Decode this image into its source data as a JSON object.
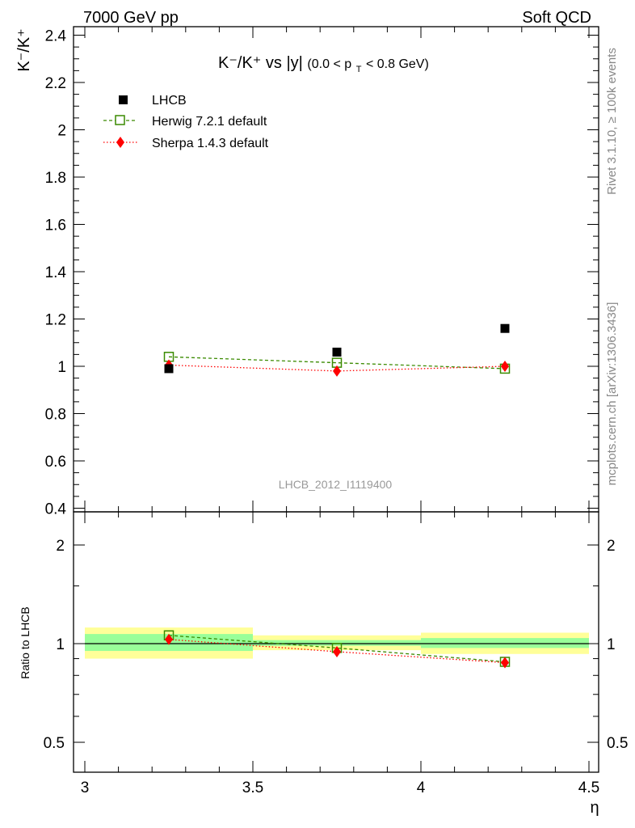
{
  "header": {
    "left": "7000 GeV pp",
    "right": "Soft QCD"
  },
  "side_labels": {
    "rivet": "Rivet 3.1.10, ≥ 100k events",
    "source": "mcplots.cern.ch [arXiv:1306.3436]"
  },
  "colors": {
    "lhcb": "#000000",
    "herwig": "#3a8a00",
    "sherpa": "#ff0000",
    "band_inner": "#99ff99",
    "band_outer": "#ffff99"
  },
  "chart_data": [
    {
      "type": "scatter",
      "title_main": "K⁻/K⁺ vs |y|",
      "title_sub": "(0.0 < p",
      "title_sub_index": "T",
      "title_sub_end": " < 0.8 GeV)",
      "ylabel": "K⁻/K⁺",
      "watermark": "LHCB_2012_I1119400",
      "xlim": [
        3.0,
        4.5
      ],
      "ylim": [
        0.4,
        2.45
      ],
      "ytick_labels": [
        "0.4",
        "0.6",
        "0.8",
        "1",
        "1.2",
        "1.4",
        "1.6",
        "1.8",
        "2",
        "2.2",
        "2.4"
      ],
      "ytick_values": [
        0.4,
        0.6,
        0.8,
        1.0,
        1.2,
        1.4,
        1.6,
        1.8,
        2.0,
        2.2,
        2.4
      ],
      "legend_position": "top-left",
      "series": [
        {
          "name": "LHCB",
          "marker": "filled-square",
          "x": [
            3.25,
            3.75,
            4.25
          ],
          "y": [
            0.99,
            1.06,
            1.16
          ]
        },
        {
          "name": "Herwig 7.2.1 default",
          "marker": "open-square",
          "line": "dashed",
          "x": [
            3.25,
            3.75,
            4.25
          ],
          "y": [
            1.04,
            1.015,
            0.99
          ]
        },
        {
          "name": "Sherpa 1.4.3 default",
          "marker": "diamond",
          "line": "dotted",
          "x": [
            3.25,
            3.75,
            4.25
          ],
          "y": [
            1.005,
            0.98,
            1.0
          ]
        }
      ]
    },
    {
      "type": "scatter",
      "ylabel": "Ratio to LHCB",
      "xlabel": "η",
      "xlim": [
        3.0,
        4.5
      ],
      "ylim": [
        0.35,
        2.5
      ],
      "y_scale": "log",
      "xtick_labels": [
        "3",
        "3.5",
        "4",
        "4.5"
      ],
      "xtick_values": [
        3.0,
        3.5,
        4.0,
        4.5
      ],
      "ytick_labels": [
        "0.5",
        "1",
        "2"
      ],
      "ytick_values": [
        0.5,
        1.0,
        2.0
      ],
      "bands": [
        {
          "x_range": [
            3.0,
            3.5
          ],
          "inner": [
            0.95,
            1.07
          ],
          "outer": [
            0.9,
            1.12
          ]
        },
        {
          "x_range": [
            3.5,
            4.0
          ],
          "inner": [
            0.985,
            1.025
          ],
          "outer": [
            0.955,
            1.06
          ]
        },
        {
          "x_range": [
            4.0,
            4.5
          ],
          "inner": [
            0.97,
            1.04
          ],
          "outer": [
            0.93,
            1.08
          ]
        }
      ],
      "series": [
        {
          "name": "Herwig 7.2.1 default",
          "marker": "open-square",
          "line": "dashed",
          "x": [
            3.25,
            3.75,
            4.25
          ],
          "y": [
            1.06,
            0.97,
            0.88
          ]
        },
        {
          "name": "Sherpa 1.4.3 default",
          "marker": "diamond",
          "line": "dotted",
          "x": [
            3.25,
            3.75,
            4.25
          ],
          "y": [
            1.03,
            0.945,
            0.875
          ]
        }
      ]
    }
  ]
}
